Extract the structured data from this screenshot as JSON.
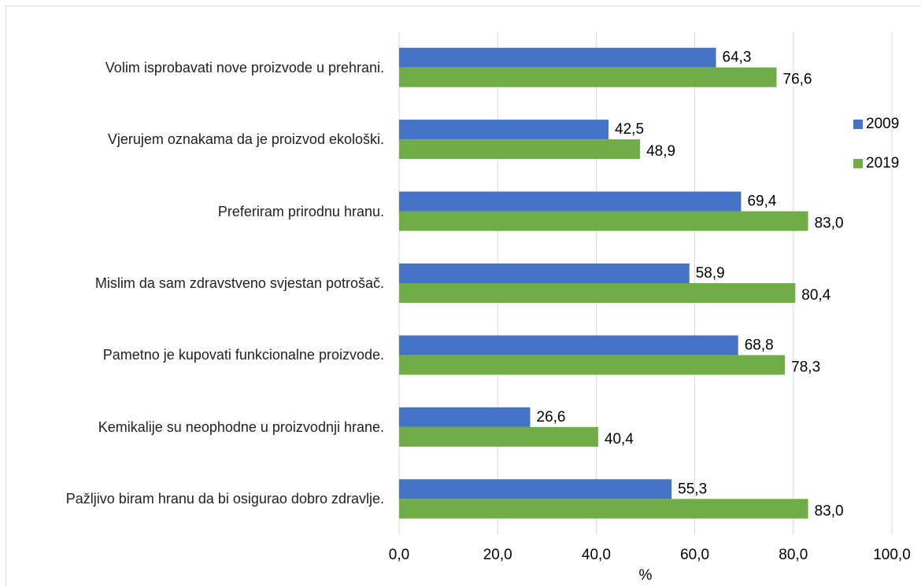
{
  "chart_data": {
    "type": "barh",
    "categories": [
      "Volim isprobavati nove proizvode u prehrani.",
      "Vjerujem oznakama da je proizvod ekološki.",
      "Preferiram prirodnu hranu.",
      "Mislim da sam zdravstveno svjestan potrošač.",
      "Pametno je kupovati funkcionalne proizvode.",
      "Kemikalije su neophodne u proizvodnji hrane.",
      "Pažljivo biram hranu da bi osigurao dobro zdravlje."
    ],
    "series": [
      {
        "name": "2009",
        "color": "#4472c4",
        "values": [
          64.3,
          42.5,
          69.4,
          58.9,
          68.8,
          26.6,
          55.3
        ],
        "value_labels": [
          "64,3",
          "42,5",
          "69,4",
          "58,9",
          "68,8",
          "26,6",
          "55,3"
        ]
      },
      {
        "name": "2019",
        "color": "#70ad47",
        "values": [
          76.6,
          48.9,
          83.0,
          80.4,
          78.3,
          40.4,
          83.0
        ],
        "value_labels": [
          "76,6",
          "48,9",
          "83,0",
          "80,4",
          "78,3",
          "40,4",
          "83,0"
        ]
      }
    ],
    "xlabel": "%",
    "xlim": [
      0,
      100
    ],
    "xticks": [
      {
        "value": 0,
        "label": "0,0"
      },
      {
        "value": 20,
        "label": "20,0"
      },
      {
        "value": 40,
        "label": "40,0"
      },
      {
        "value": 60,
        "label": "60,0"
      },
      {
        "value": 80,
        "label": "80,0"
      },
      {
        "value": 100,
        "label": "100,0"
      }
    ],
    "grid": true,
    "legend": "right"
  }
}
